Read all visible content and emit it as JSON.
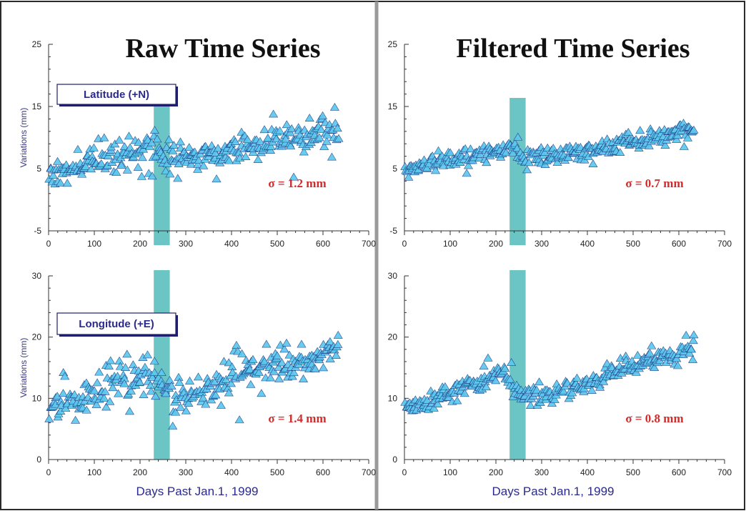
{
  "colors": {
    "marker_fill": "#5cc8ee",
    "marker_stroke": "#1f3f86",
    "band": "#5bbfbf",
    "sigma_text": "#d22b2b",
    "axis_label": "#2a2a8a",
    "frame": "#2a2a2a",
    "divider": "#9a9a9a"
  },
  "chart_data": [
    {
      "id": "raw-lat",
      "type": "scatter",
      "column": 0,
      "row": 0,
      "title": "Raw Time Series",
      "panel_label": "Latitude (+N)",
      "ylabel": "Variations (mm)",
      "xlabel": "",
      "xlim": [
        0,
        700
      ],
      "ylim": [
        -5,
        25
      ],
      "xticks": [
        0,
        100,
        200,
        300,
        400,
        500,
        600,
        700
      ],
      "yticks": [
        -5,
        5,
        15,
        25
      ],
      "sigma": "σ = 1.2 mm",
      "highlight_band": [
        230,
        265
      ],
      "series": [
        {
          "trend": [
            [
              0,
              4.5
            ],
            [
              100,
              6.5
            ],
            [
              230,
              8.5
            ],
            [
              260,
              7
            ],
            [
              300,
              6.8
            ],
            [
              400,
              8
            ],
            [
              500,
              9.5
            ],
            [
              630,
              11.5
            ]
          ],
          "noise": 1.2,
          "count": 300,
          "seed": 11
        }
      ]
    },
    {
      "id": "raw-lon",
      "type": "scatter",
      "column": 0,
      "row": 1,
      "title": "",
      "panel_label": "Longitude (+E)",
      "ylabel": "Variations (mm)",
      "xlabel": "Days Past Jan.1, 1999",
      "xlim": [
        0,
        700
      ],
      "ylim": [
        0,
        30
      ],
      "xticks": [
        0,
        100,
        200,
        300,
        400,
        500,
        600,
        700
      ],
      "yticks": [
        0,
        10,
        20,
        30
      ],
      "sigma": "σ = 1.4 mm",
      "highlight_band": [
        230,
        265
      ],
      "series": [
        {
          "trend": [
            [
              0,
              8.5
            ],
            [
              100,
              11
            ],
            [
              200,
              14
            ],
            [
              240,
              13
            ],
            [
              270,
              10.5
            ],
            [
              300,
              10.5
            ],
            [
              400,
              13
            ],
            [
              500,
              15.5
            ],
            [
              630,
              18.5
            ]
          ],
          "noise": 1.4,
          "count": 300,
          "seed": 23
        }
      ]
    },
    {
      "id": "filt-lat",
      "type": "scatter",
      "column": 1,
      "row": 0,
      "title": "Filtered Time Series",
      "panel_label": "",
      "ylabel": "",
      "xlabel": "",
      "xlim": [
        0,
        700
      ],
      "ylim": [
        -5,
        25
      ],
      "xticks": [
        0,
        100,
        200,
        300,
        400,
        500,
        600,
        700
      ],
      "yticks": [
        -5,
        5,
        15,
        25
      ],
      "sigma": "σ = 0.7 mm",
      "highlight_band": [
        230,
        265
      ],
      "series": [
        {
          "trend": [
            [
              0,
              5
            ],
            [
              100,
              6.5
            ],
            [
              230,
              8.5
            ],
            [
              260,
              6.5
            ],
            [
              300,
              6.8
            ],
            [
              400,
              7.8
            ],
            [
              500,
              9.5
            ],
            [
              630,
              11.5
            ]
          ],
          "noise": 0.7,
          "count": 300,
          "seed": 37
        }
      ]
    },
    {
      "id": "filt-lon",
      "type": "scatter",
      "column": 1,
      "row": 1,
      "title": "",
      "panel_label": "",
      "ylabel": "",
      "xlabel": "Days Past Jan.1, 1999",
      "xlim": [
        0,
        700
      ],
      "ylim": [
        0,
        30
      ],
      "xticks": [
        0,
        100,
        200,
        300,
        400,
        500,
        600,
        700
      ],
      "yticks": [
        0,
        10,
        20,
        30
      ],
      "sigma": "σ = 0.8 mm",
      "highlight_band": [
        230,
        265
      ],
      "series": [
        {
          "trend": [
            [
              0,
              8
            ],
            [
              100,
              11
            ],
            [
              210,
              14.5
            ],
            [
              250,
              11
            ],
            [
              300,
              10.5
            ],
            [
              400,
              12.5
            ],
            [
              500,
              15.5
            ],
            [
              630,
              18.5
            ]
          ],
          "noise": 0.8,
          "count": 300,
          "seed": 53
        }
      ]
    }
  ]
}
